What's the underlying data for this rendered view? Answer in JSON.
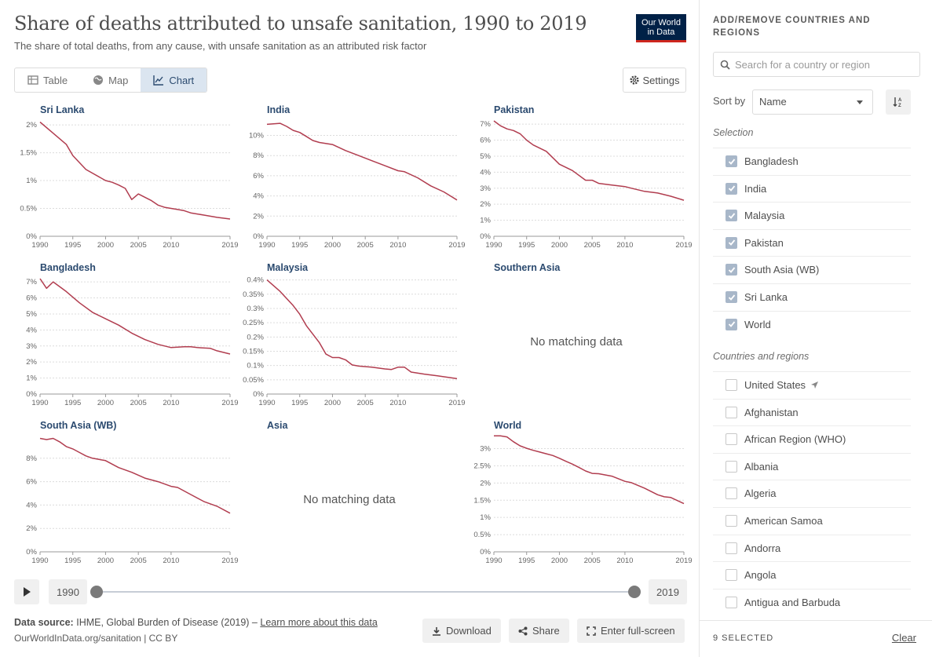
{
  "header": {
    "title": "Share of deaths attributed to unsafe sanitation, 1990 to 2019",
    "subtitle": "The share of total deaths, from any cause, with unsafe sanitation as an attributed risk factor",
    "logo_line1": "Our World",
    "logo_line2": "in Data"
  },
  "tabs": [
    {
      "label": "Table",
      "icon": "table-icon"
    },
    {
      "label": "Map",
      "icon": "globe-icon"
    },
    {
      "label": "Chart",
      "icon": "line-chart-icon",
      "active": true
    }
  ],
  "settings_label": "Settings",
  "colors": {
    "line": "#b13d4f",
    "accent": "#2b4a6f"
  },
  "chart_data": [
    {
      "type": "line",
      "title": "Sri Lanka",
      "x": [
        1990,
        1992,
        1994,
        1995,
        1997,
        2000,
        2001,
        2002,
        2003,
        2004,
        2005,
        2006,
        2007,
        2008,
        2009,
        2010,
        2011,
        2012,
        2013,
        2015,
        2017,
        2019
      ],
      "y": [
        2.05,
        1.85,
        1.65,
        1.45,
        1.2,
        1.0,
        0.97,
        0.92,
        0.86,
        0.66,
        0.76,
        0.7,
        0.64,
        0.56,
        0.52,
        0.5,
        0.48,
        0.46,
        0.42,
        0.38,
        0.34,
        0.31
      ],
      "yticks": [
        0,
        0.5,
        1,
        1.5,
        2
      ],
      "yticklabels": [
        "0%",
        "0.5%",
        "1%",
        "1.5%",
        "2%"
      ],
      "ylim": [
        0,
        2.1
      ],
      "xticks": [
        1990,
        1995,
        2000,
        2005,
        2010,
        2019
      ]
    },
    {
      "type": "line",
      "title": "India",
      "x": [
        1990,
        1992,
        1993,
        1994,
        1995,
        1996,
        1997,
        1998,
        2000,
        2002,
        2004,
        2006,
        2008,
        2010,
        2011,
        2013,
        2015,
        2017,
        2019
      ],
      "y": [
        11.1,
        11.2,
        10.9,
        10.5,
        10.3,
        9.9,
        9.5,
        9.3,
        9.1,
        8.5,
        8.0,
        7.5,
        7.0,
        6.5,
        6.4,
        5.8,
        5.0,
        4.4,
        3.6
      ],
      "yticks": [
        0,
        2,
        4,
        6,
        8,
        10
      ],
      "yticklabels": [
        "0%",
        "2%",
        "4%",
        "6%",
        "8%",
        "10%"
      ],
      "ylim": [
        0,
        11.6
      ],
      "xticks": [
        1990,
        1995,
        2000,
        2005,
        2010,
        2019
      ]
    },
    {
      "type": "line",
      "title": "Pakistan",
      "x": [
        1990,
        1991,
        1992,
        1993,
        1994,
        1995,
        1996,
        1998,
        2000,
        2002,
        2004,
        2005,
        2006,
        2008,
        2010,
        2011,
        2013,
        2015,
        2017,
        2019
      ],
      "y": [
        7.2,
        6.9,
        6.7,
        6.6,
        6.4,
        6.0,
        5.7,
        5.3,
        4.5,
        4.1,
        3.5,
        3.5,
        3.3,
        3.2,
        3.1,
        3.0,
        2.8,
        2.7,
        2.5,
        2.25
      ],
      "yticks": [
        0,
        1,
        2,
        3,
        4,
        5,
        6,
        7
      ],
      "yticklabels": [
        "0%",
        "1%",
        "2%",
        "3%",
        "4%",
        "5%",
        "6%",
        "7%"
      ],
      "ylim": [
        0,
        7.3
      ],
      "xticks": [
        1990,
        1995,
        2000,
        2005,
        2010,
        2019
      ]
    },
    {
      "type": "line",
      "title": "Bangladesh",
      "x": [
        1990,
        1991,
        1992,
        1994,
        1996,
        1998,
        2000,
        2002,
        2004,
        2006,
        2008,
        2010,
        2012,
        2013,
        2014,
        2016,
        2017,
        2019
      ],
      "y": [
        7.2,
        6.6,
        7.0,
        6.4,
        5.7,
        5.1,
        4.7,
        4.3,
        3.8,
        3.4,
        3.1,
        2.9,
        2.95,
        2.95,
        2.9,
        2.85,
        2.7,
        2.5
      ],
      "yticks": [
        0,
        1,
        2,
        3,
        4,
        5,
        6,
        7
      ],
      "yticklabels": [
        "0%",
        "1%",
        "2%",
        "3%",
        "4%",
        "5%",
        "6%",
        "7%"
      ],
      "ylim": [
        0,
        7.3
      ],
      "xticks": [
        1990,
        1995,
        2000,
        2005,
        2010,
        2019
      ]
    },
    {
      "type": "line",
      "title": "Malaysia",
      "x": [
        1990,
        1992,
        1994,
        1995,
        1996,
        1998,
        1999,
        2000,
        2001,
        2002,
        2003,
        2004,
        2006,
        2008,
        2009,
        2010,
        2011,
        2012,
        2014,
        2016,
        2019
      ],
      "y": [
        0.4,
        0.36,
        0.31,
        0.28,
        0.24,
        0.18,
        0.14,
        0.128,
        0.128,
        0.12,
        0.102,
        0.098,
        0.094,
        0.088,
        0.086,
        0.094,
        0.094,
        0.077,
        0.07,
        0.064,
        0.054
      ],
      "yticks": [
        0,
        0.05,
        0.1,
        0.15,
        0.2,
        0.25,
        0.3,
        0.35,
        0.4
      ],
      "yticklabels": [
        "0%",
        "0.05%",
        "0.1%",
        "0.15%",
        "0.2%",
        "0.25%",
        "0.3%",
        "0.35%",
        "0.4%"
      ],
      "ylim": [
        0,
        0.41
      ],
      "xticks": [
        1990,
        1995,
        2000,
        2005,
        2010,
        2019
      ]
    },
    {
      "type": "line",
      "title": "Southern Asia",
      "empty": true,
      "message": "No matching data"
    },
    {
      "type": "line",
      "title": "South Asia (WB)",
      "x": [
        1990,
        1991,
        1992,
        1993,
        1994,
        1995,
        1996,
        1997,
        1998,
        1999,
        2000,
        2002,
        2004,
        2006,
        2008,
        2010,
        2011,
        2013,
        2015,
        2017,
        2019
      ],
      "y": [
        9.7,
        9.6,
        9.7,
        9.4,
        9.0,
        8.8,
        8.5,
        8.2,
        8.0,
        7.9,
        7.8,
        7.2,
        6.8,
        6.3,
        6.0,
        5.6,
        5.5,
        4.9,
        4.3,
        3.9,
        3.3
      ],
      "yticks": [
        0,
        2,
        4,
        6,
        8
      ],
      "yticklabels": [
        "0%",
        "2%",
        "4%",
        "6%",
        "8%"
      ],
      "ylim": [
        0,
        10
      ],
      "xticks": [
        1990,
        1995,
        2000,
        2005,
        2010,
        2019
      ]
    },
    {
      "type": "line",
      "title": "Asia",
      "empty": true,
      "message": "No matching data"
    },
    {
      "type": "line",
      "title": "World",
      "x": [
        1990,
        1991,
        1992,
        1993,
        1994,
        1995,
        1996,
        1997,
        1998,
        1999,
        2000,
        2001,
        2002,
        2003,
        2004,
        2005,
        2006,
        2008,
        2010,
        2011,
        2013,
        2015,
        2016,
        2017,
        2019
      ],
      "y": [
        3.37,
        3.37,
        3.34,
        3.2,
        3.08,
        3.01,
        2.95,
        2.9,
        2.85,
        2.8,
        2.72,
        2.63,
        2.55,
        2.45,
        2.35,
        2.28,
        2.27,
        2.2,
        2.05,
        2.01,
        1.85,
        1.66,
        1.6,
        1.58,
        1.4
      ],
      "yticks": [
        0,
        0.5,
        1,
        1.5,
        2,
        2.5,
        3
      ],
      "yticklabels": [
        "0%",
        "0.5%",
        "1%",
        "1.5%",
        "2%",
        "2.5%",
        "3%"
      ],
      "ylim": [
        0,
        3.4
      ],
      "xticks": [
        1990,
        1995,
        2000,
        2005,
        2010,
        2019
      ]
    }
  ],
  "timeline": {
    "start": "1990",
    "end": "2019"
  },
  "footer": {
    "source_label": "Data source:",
    "source_text": "IHME, Global Burden of Disease (2019) –",
    "learn_more": "Learn more about this data",
    "url_line": "OurWorldInData.org/sanitation | CC BY",
    "download": "Download",
    "share": "Share",
    "fullscreen": "Enter full-screen"
  },
  "sidebar": {
    "heading": "ADD/REMOVE COUNTRIES AND REGIONS",
    "search_placeholder": "Search for a country or region",
    "sort_label": "Sort by",
    "sort_value": "Name",
    "selection_label": "Selection",
    "selected": [
      "Bangladesh",
      "India",
      "Malaysia",
      "Pakistan",
      "South Asia (WB)",
      "Sri Lanka",
      "World"
    ],
    "regions_label": "Countries and regions",
    "regions": [
      "United States",
      "Afghanistan",
      "African Region (WHO)",
      "Albania",
      "Algeria",
      "American Samoa",
      "Andorra",
      "Angola",
      "Antigua and Barbuda"
    ],
    "selected_count": "9 SELECTED",
    "clear": "Clear"
  }
}
